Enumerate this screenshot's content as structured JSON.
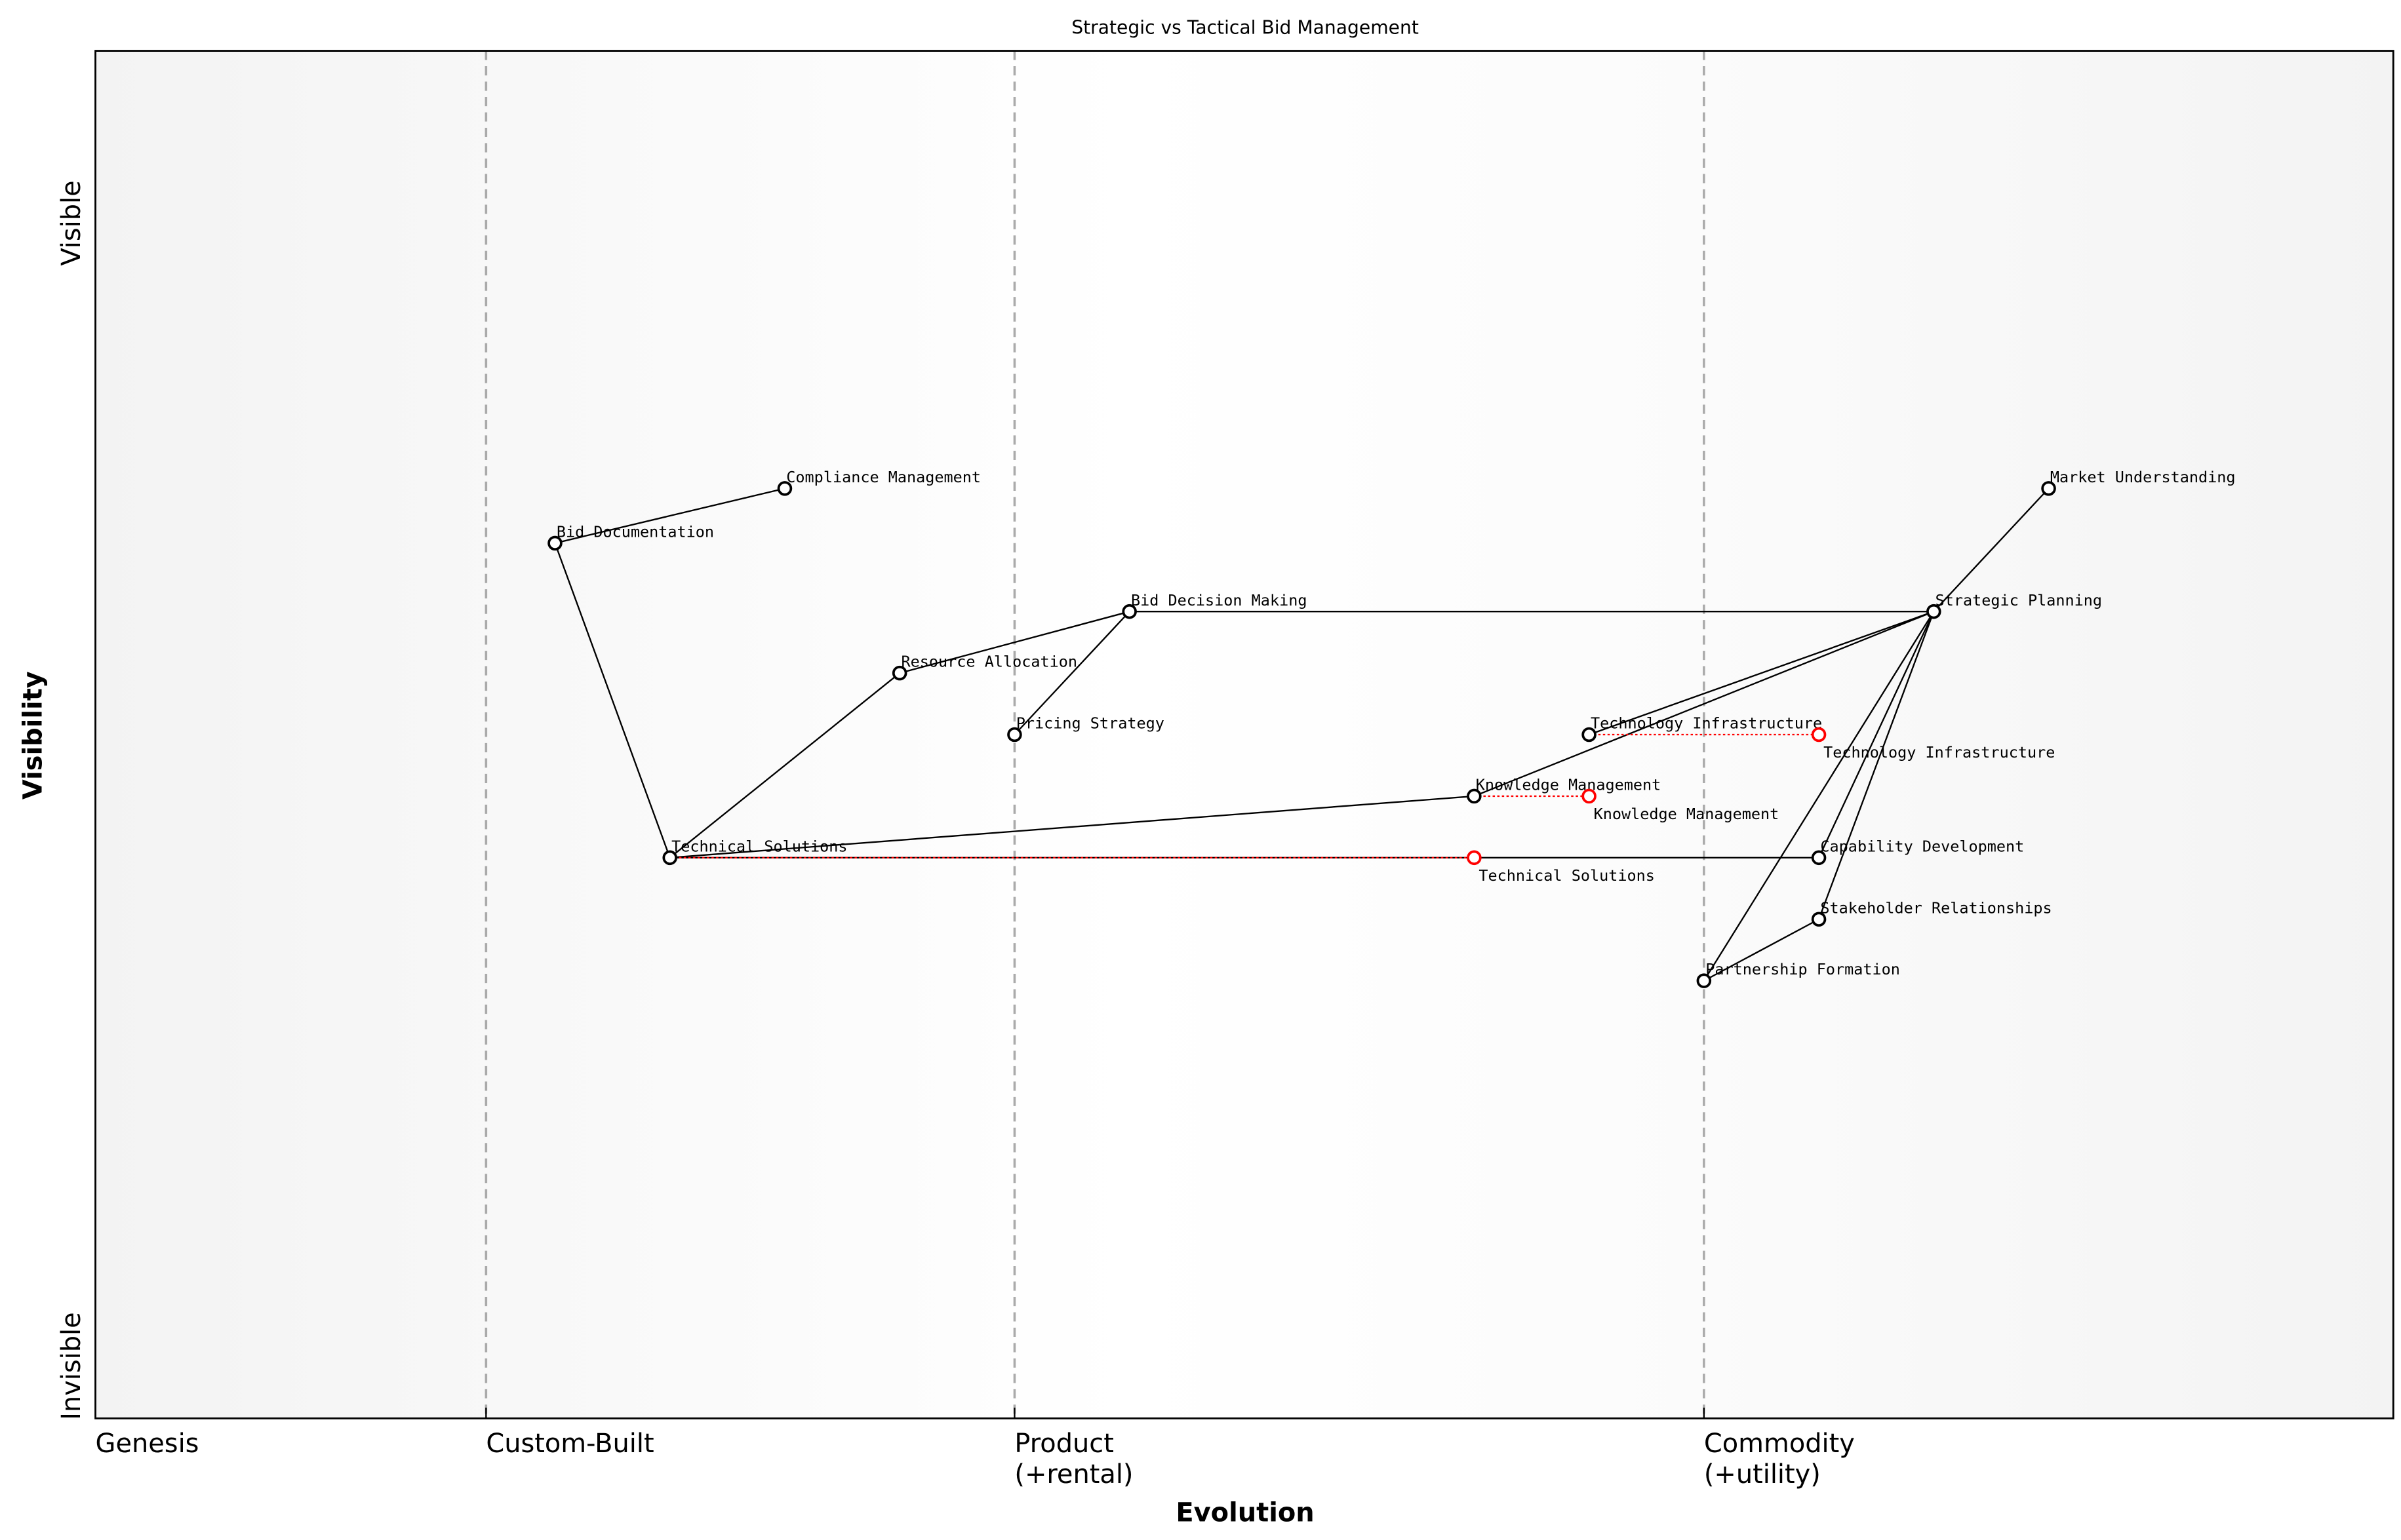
{
  "title": "Strategic vs Tactical Bid Management",
  "x_axis": {
    "label": "Evolution",
    "stages": [
      {
        "line1": "Genesis",
        "line2": "",
        "position": 0.0
      },
      {
        "line1": "Custom-Built",
        "line2": "",
        "position": 0.17
      },
      {
        "line1": "Product",
        "line2": "(+rental)",
        "position": 0.4
      },
      {
        "line1": "Commodity",
        "line2": "(+utility)",
        "position": 0.7
      }
    ]
  },
  "y_axis": {
    "label": "Visibility",
    "top": "Visible",
    "bottom": "Invisible"
  },
  "colors": {
    "component": "#000000",
    "evolved": "#ff0000",
    "stage_line": "#aaaaaa"
  },
  "components": [
    {
      "name": "Market Understanding",
      "evolution": 0.85,
      "visibility": 0.68
    },
    {
      "name": "Compliance Management",
      "evolution": 0.3,
      "visibility": 0.68
    },
    {
      "name": "Bid Documentation",
      "evolution": 0.2,
      "visibility": 0.64
    },
    {
      "name": "Bid Decision Making",
      "evolution": 0.45,
      "visibility": 0.59
    },
    {
      "name": "Strategic Planning",
      "evolution": 0.8,
      "visibility": 0.59
    },
    {
      "name": "Resource Allocation",
      "evolution": 0.35,
      "visibility": 0.545
    },
    {
      "name": "Pricing Strategy",
      "evolution": 0.4,
      "visibility": 0.5
    },
    {
      "name": "Technology Infrastructure",
      "evolution": 0.65,
      "visibility": 0.5
    },
    {
      "name": "Knowledge Management",
      "evolution": 0.6,
      "visibility": 0.455
    },
    {
      "name": "Technical Solutions",
      "evolution": 0.25,
      "visibility": 0.41
    },
    {
      "name": "Capability Development",
      "evolution": 0.75,
      "visibility": 0.41
    },
    {
      "name": "Stakeholder Relationships",
      "evolution": 0.75,
      "visibility": 0.365
    },
    {
      "name": "Partnership Formation",
      "evolution": 0.7,
      "visibility": 0.32
    }
  ],
  "links": [
    [
      "Bid Documentation",
      "Compliance Management"
    ],
    [
      "Bid Documentation",
      "Technical Solutions"
    ],
    [
      "Technical Solutions",
      "Resource Allocation"
    ],
    [
      "Resource Allocation",
      "Bid Decision Making"
    ],
    [
      "Bid Decision Making",
      "Pricing Strategy"
    ],
    [
      "Bid Decision Making",
      "Strategic Planning"
    ],
    [
      "Technical Solutions",
      "Knowledge Management"
    ],
    [
      "Knowledge Management",
      "Strategic Planning"
    ],
    [
      "Technology Infrastructure",
      "Strategic Planning"
    ],
    [
      "Strategic Planning",
      "Market Understanding"
    ],
    [
      "Strategic Planning",
      "Partnership Formation"
    ],
    [
      "Strategic Planning",
      "Capability Development"
    ],
    [
      "Strategic Planning",
      "Stakeholder Relationships"
    ],
    [
      "Partnership Formation",
      "Stakeholder Relationships"
    ],
    [
      "Technical Solutions",
      "Capability Development"
    ]
  ],
  "evolutions": [
    {
      "name": "Technical Solutions",
      "from": 0.25,
      "to": 0.6,
      "visibility": 0.41
    },
    {
      "name": "Knowledge Management",
      "from": 0.6,
      "to": 0.65,
      "visibility": 0.455
    },
    {
      "name": "Technology Infrastructure",
      "from": 0.65,
      "to": 0.75,
      "visibility": 0.5
    }
  ]
}
